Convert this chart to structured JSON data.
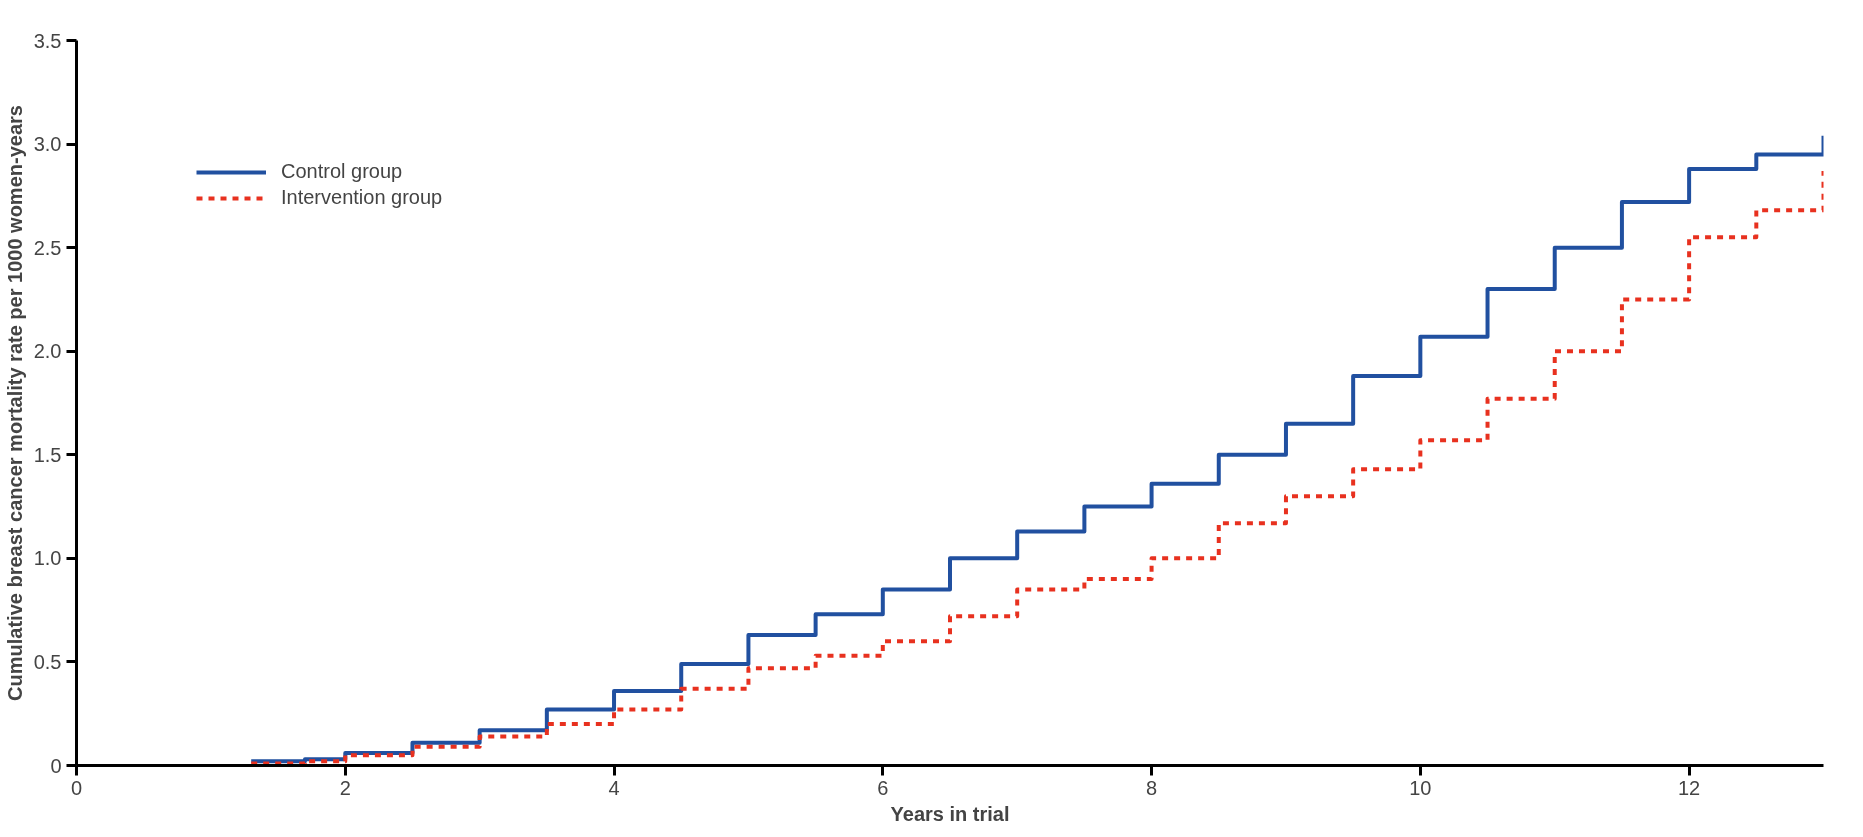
{
  "chart_data": {
    "type": "step",
    "xlabel": "Years in trial",
    "ylabel": "Cumulative breast cancer mortality rate per 1000 women-years",
    "x": [
      1.3,
      1.7,
      2.0,
      2.5,
      3.0,
      3.5,
      4.0,
      4.5,
      5.0,
      5.5,
      6.0,
      6.5,
      7.0,
      7.5,
      8.0,
      8.5,
      9.0,
      9.5,
      10.0,
      10.5,
      11.0,
      11.5,
      12.0,
      12.5,
      13.0
    ],
    "series": [
      {
        "name": "Control group",
        "color": "#2150a0",
        "line_style": "solid",
        "values": [
          0.02,
          0.03,
          0.06,
          0.11,
          0.17,
          0.27,
          0.36,
          0.49,
          0.63,
          0.73,
          0.85,
          1.0,
          1.13,
          1.25,
          1.36,
          1.5,
          1.65,
          1.88,
          2.07,
          2.3,
          2.5,
          2.72,
          2.88,
          2.95,
          3.04
        ]
      },
      {
        "name": "Intervention group",
        "color": "#e8311f",
        "line_style": "dashed",
        "values": [
          0.01,
          0.02,
          0.05,
          0.09,
          0.14,
          0.2,
          0.27,
          0.37,
          0.47,
          0.53,
          0.6,
          0.72,
          0.85,
          0.9,
          1.0,
          1.17,
          1.3,
          1.43,
          1.57,
          1.77,
          2.0,
          2.25,
          2.55,
          2.68,
          2.87
        ]
      }
    ],
    "xlim": [
      0,
      13
    ],
    "xticks": [
      0,
      2,
      4,
      6,
      8,
      10,
      12
    ],
    "ylim": [
      0,
      3.5
    ],
    "yticks": [
      {
        "value": 0,
        "label": "0"
      },
      {
        "value": 0.5,
        "label": "0.5"
      },
      {
        "value": 1,
        "label": "1.0"
      },
      {
        "value": 1.5,
        "label": "1.5"
      },
      {
        "value": 2,
        "label": "2.0"
      },
      {
        "value": 2.5,
        "label": "2.5"
      },
      {
        "value": 3,
        "label": "3.0"
      },
      {
        "value": 3.5,
        "label": "3.5"
      }
    ],
    "grid": false,
    "legend": "top left"
  }
}
